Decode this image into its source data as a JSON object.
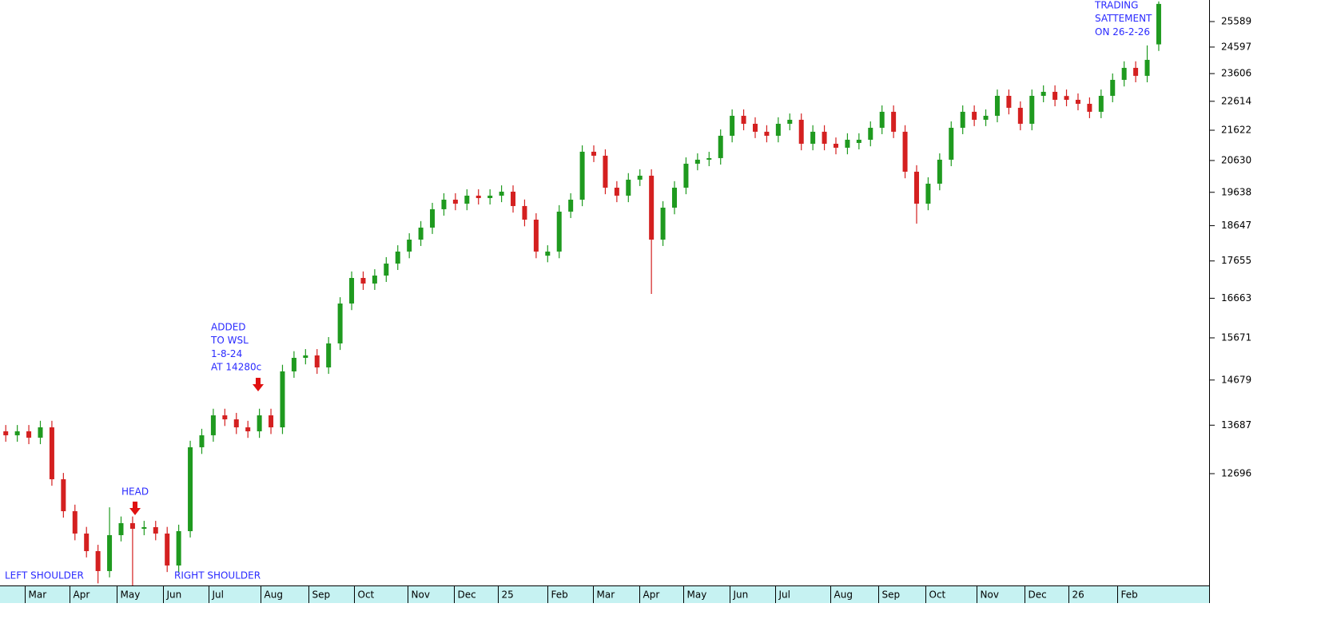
{
  "chart_data": {
    "type": "candlestick",
    "log_scale": true,
    "up_color": "#1f9a1f",
    "down_color": "#d42020",
    "x": [
      0,
      1,
      2,
      3,
      4,
      5,
      6,
      7,
      8,
      9,
      10,
      11,
      12,
      13,
      14,
      15,
      16,
      17,
      18,
      19,
      20,
      21,
      22,
      23,
      24,
      25,
      26,
      27,
      28,
      29,
      30,
      31,
      32,
      33,
      34,
      35,
      36,
      37,
      38,
      39,
      40,
      41,
      42,
      43,
      44,
      45,
      46,
      47,
      48,
      49,
      50,
      51,
      52,
      53,
      54,
      55,
      56,
      57,
      58,
      59,
      60,
      61,
      62,
      63,
      64,
      65,
      66,
      67,
      68,
      69,
      70,
      71,
      72,
      73,
      74,
      75,
      76,
      77,
      78,
      79,
      80,
      81,
      82,
      83,
      84,
      85,
      86,
      87,
      88,
      89,
      90,
      91,
      92,
      93,
      94,
      95,
      96,
      97,
      98,
      99,
      100
    ],
    "open": [
      13557,
      13474,
      13557,
      13424,
      13641,
      12586,
      11978,
      11570,
      11259,
      10916,
      11541,
      11758,
      11656,
      11685,
      11570,
      11011,
      11613,
      13226,
      13474,
      13897,
      13811,
      13641,
      13557,
      13897,
      13641,
      14877,
      15193,
      15250,
      14969,
      15536,
      16528,
      17196,
      17048,
      17260,
      17584,
      17914,
      18249,
      18592,
      19129,
      19415,
      19295,
      19536,
      19463,
      19536,
      19657,
      19224,
      18823,
      17800,
      17914,
      19058,
      19415,
      20913,
      20784,
      19779,
      19536,
      20026,
      20150,
      18249,
      19176,
      19779,
      20528,
      20656,
      20707,
      21437,
      22111,
      21839,
      21571,
      21437,
      21839,
      21975,
      21173,
      21571,
      21173,
      21043,
      21200,
      21305,
      21704,
      22249,
      21571,
      20275,
      19295,
      19902,
      20656,
      21704,
      22249,
      21975,
      22111,
      22806,
      22387,
      21839,
      22806,
      22948,
      22800,
      22666,
      22526,
      22249,
      22806,
      23378,
      23817,
      23524,
      24700
    ],
    "high": [
      13690,
      13690,
      13690,
      13780,
      13780,
      12710,
      12100,
      11690,
      11370,
      12050,
      11880,
      11880,
      11800,
      11800,
      11690,
      11730,
      13360,
      13610,
      14040,
      14040,
      13950,
      13780,
      14040,
      14040,
      15030,
      15350,
      15400,
      15400,
      15690,
      16690,
      17370,
      17370,
      17430,
      17760,
      18090,
      18430,
      18780,
      19320,
      19610,
      19610,
      19730,
      19730,
      19730,
      19850,
      19850,
      19420,
      19010,
      18090,
      19250,
      19610,
      21120,
      21120,
      20990,
      19980,
      20230,
      20350,
      20350,
      19370,
      19980,
      20730,
      20860,
      20910,
      21650,
      22330,
      22330,
      22060,
      21790,
      22060,
      22190,
      22190,
      21790,
      21790,
      21380,
      21520,
      21520,
      21920,
      22470,
      22470,
      21790,
      20480,
      20100,
      20860,
      21920,
      22470,
      22470,
      22330,
      23030,
      23030,
      22610,
      23030,
      23180,
      23180,
      23030,
      22890,
      22750,
      23030,
      23610,
      24060,
      24060,
      24660,
      26400
    ],
    "low": [
      13340,
      13340,
      13290,
      13290,
      12460,
      11860,
      11450,
      11150,
      10710,
      10810,
      11430,
      10675,
      11540,
      11450,
      10900,
      10900,
      11500,
      13090,
      13340,
      13670,
      13500,
      13420,
      13420,
      13500,
      13500,
      14730,
      15040,
      14820,
      14820,
      15380,
      16360,
      16880,
      16880,
      17090,
      17410,
      17730,
      18070,
      18410,
      18940,
      19100,
      19100,
      19270,
      19270,
      19340,
      19030,
      18630,
      17730,
      17620,
      17730,
      18870,
      19220,
      20580,
      19580,
      19340,
      19340,
      19830,
      16776,
      18070,
      18980,
      19580,
      20320,
      20450,
      20500,
      21220,
      21620,
      21360,
      21220,
      21220,
      21620,
      20960,
      20960,
      20960,
      20830,
      20830,
      20990,
      21090,
      21490,
      21360,
      20070,
      18707,
      19100,
      19700,
      20450,
      21490,
      21760,
      21760,
      21890,
      22160,
      21620,
      21620,
      22580,
      22440,
      22440,
      22300,
      22030,
      22030,
      22580,
      23140,
      23290,
      23290,
      24450
    ],
    "close": [
      13474,
      13557,
      13424,
      13641,
      12586,
      11978,
      11570,
      11259,
      10916,
      11541,
      11758,
      11656,
      11685,
      11570,
      11011,
      11613,
      13226,
      13474,
      13897,
      13811,
      13641,
      13557,
      13897,
      13641,
      14877,
      15193,
      15250,
      14969,
      15536,
      16528,
      17196,
      17048,
      17260,
      17584,
      17914,
      18249,
      18592,
      19129,
      19415,
      19295,
      19536,
      19463,
      19536,
      19657,
      19224,
      18823,
      17914,
      17914,
      19058,
      19415,
      20913,
      20784,
      19779,
      19536,
      20026,
      20150,
      18249,
      19176,
      19779,
      20528,
      20656,
      20707,
      21437,
      22111,
      21839,
      21571,
      21437,
      21839,
      21975,
      21173,
      21571,
      21173,
      21043,
      21305,
      21305,
      21704,
      22249,
      21571,
      20275,
      19295,
      19902,
      20656,
      21704,
      22249,
      21975,
      22111,
      22806,
      22387,
      21839,
      22806,
      22948,
      22666,
      22666,
      22526,
      22249,
      22806,
      23378,
      23817,
      23524,
      24114,
      26299
    ],
    "xlim": [
      -0.5,
      104.3
    ],
    "xticks": [
      {
        "value": 1.65,
        "label": "Mar"
      },
      {
        "value": 5.53,
        "label": "Apr"
      },
      {
        "value": 9.62,
        "label": "May"
      },
      {
        "value": 13.64,
        "label": "Jun"
      },
      {
        "value": 17.59,
        "label": "Jul"
      },
      {
        "value": 22.09,
        "label": "Aug"
      },
      {
        "value": 26.25,
        "label": "Sep"
      },
      {
        "value": 30.2,
        "label": "Oct"
      },
      {
        "value": 34.84,
        "label": "Nov"
      },
      {
        "value": 38.86,
        "label": "Dec"
      },
      {
        "value": 42.67,
        "label": "25"
      },
      {
        "value": 46.97,
        "label": "Feb"
      },
      {
        "value": 50.92,
        "label": "Mar"
      },
      {
        "value": 54.94,
        "label": "Apr"
      },
      {
        "value": 58.75,
        "label": "May"
      },
      {
        "value": 62.77,
        "label": "Jun"
      },
      {
        "value": 66.72,
        "label": "Jul"
      },
      {
        "value": 71.5,
        "label": "Aug"
      },
      {
        "value": 75.66,
        "label": "Sep"
      },
      {
        "value": 79.75,
        "label": "Oct"
      },
      {
        "value": 84.19,
        "label": "Nov"
      },
      {
        "value": 88.34,
        "label": "Dec"
      },
      {
        "value": 92.15,
        "label": "26"
      },
      {
        "value": 96.38,
        "label": "Feb"
      }
    ],
    "ylim": [
      10675,
      26459
    ],
    "yticks": [
      12696,
      13687,
      14679,
      15671,
      16663,
      17655,
      18647,
      19638,
      20630,
      21622,
      22614,
      23606,
      24597,
      25589
    ],
    "annotations": [
      [
        "LEFT SHOULDER"
      ],
      [
        "HEAD"
      ],
      [
        "RIGHT SHOULDER"
      ],
      [
        "ADDED",
        "TO WSL",
        "1-8-24",
        "AT 14280c"
      ],
      [
        "TRADING",
        "SATTEMENT",
        "ON 26-2-26"
      ]
    ]
  }
}
